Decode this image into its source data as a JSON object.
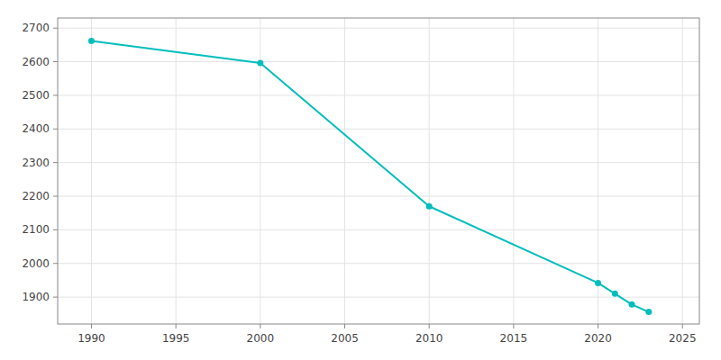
{
  "chart_data": {
    "type": "line",
    "x": [
      1990,
      2000,
      2010,
      2020,
      2021,
      2022,
      2023
    ],
    "values": [
      2662,
      2596,
      2170,
      1942,
      1910,
      1878,
      1856
    ],
    "color": "#00BDBD",
    "marker": "circle",
    "xlim": [
      1988,
      2026
    ],
    "ylim": [
      1820,
      2730
    ],
    "xticks": [
      1990,
      1995,
      2000,
      2005,
      2010,
      2015,
      2020,
      2025
    ],
    "yticks": [
      1900,
      2000,
      2100,
      2200,
      2300,
      2400,
      2500,
      2600,
      2700
    ],
    "grid": true
  }
}
